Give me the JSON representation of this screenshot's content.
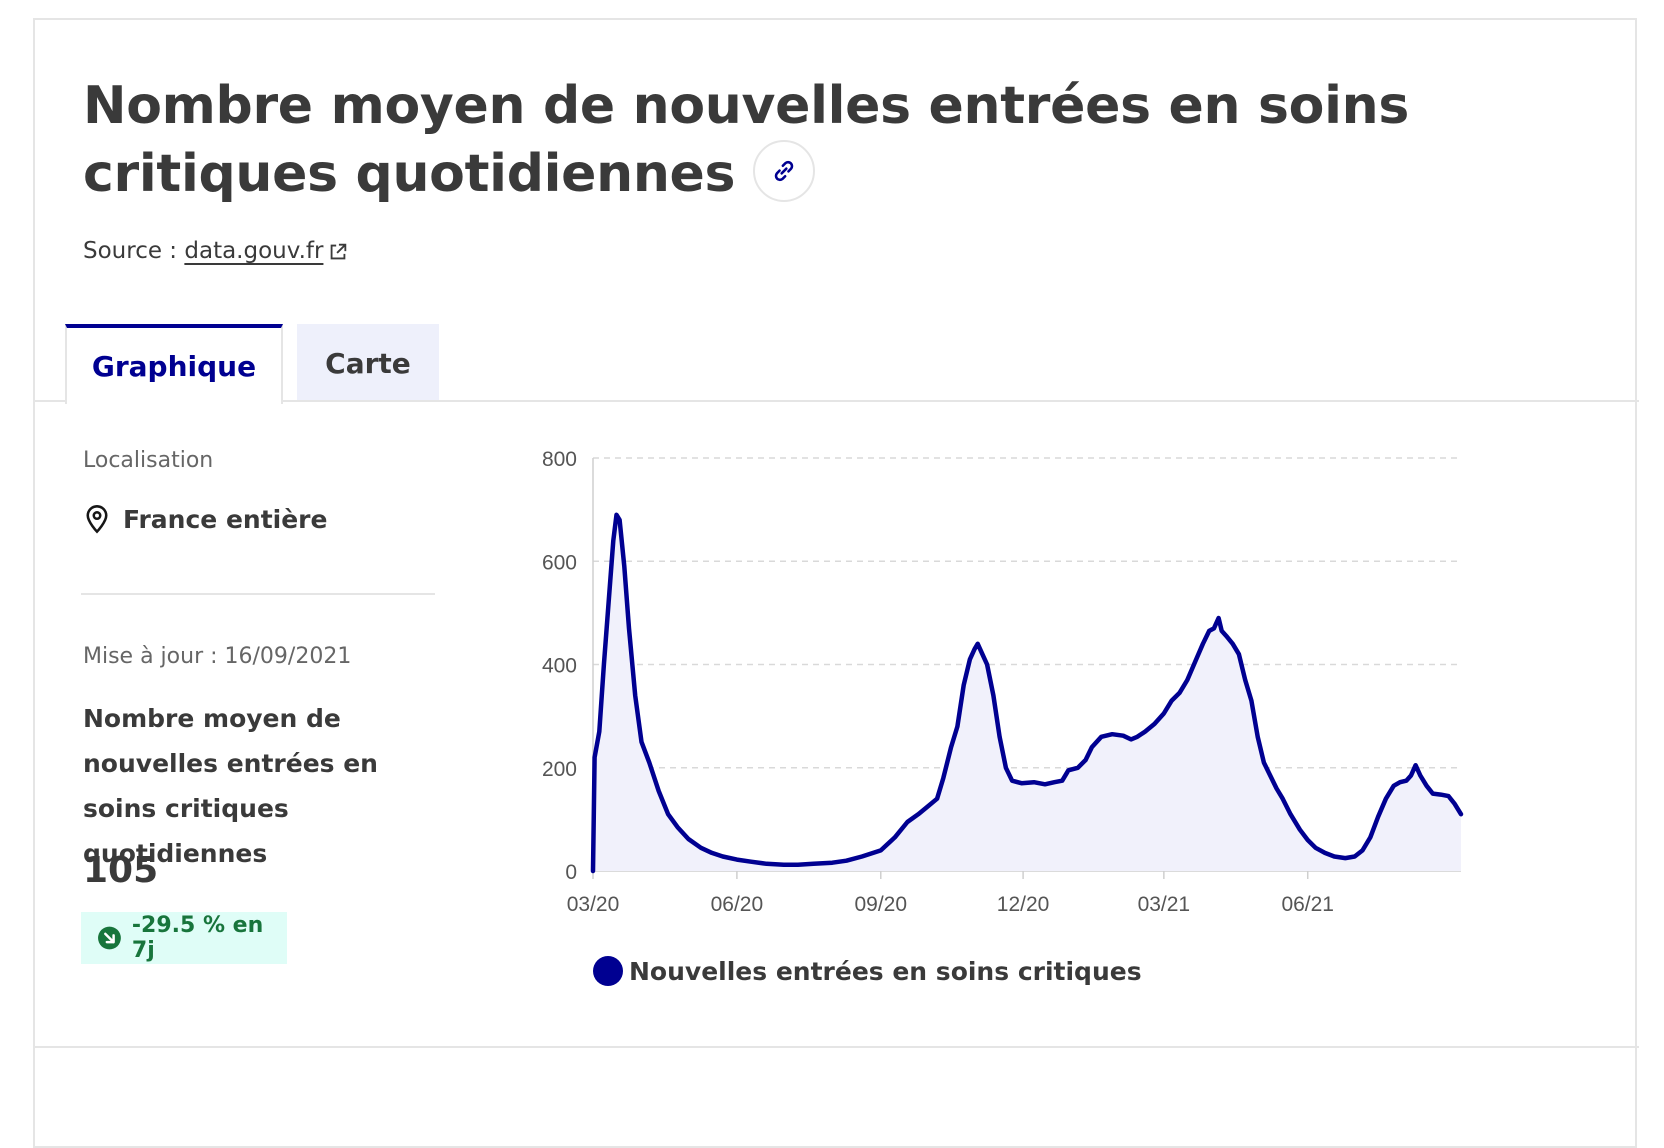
{
  "header": {
    "title": "Nombre moyen de nouvelles entrées en soins critiques quotidiennes",
    "source_prefix": "Source : ",
    "source_link": "data.gouv.fr",
    "link_icon": "link-icon",
    "external_icon": "external-link-icon"
  },
  "tabs": [
    {
      "label": "Graphique",
      "active": true
    },
    {
      "label": "Carte",
      "active": false
    }
  ],
  "sidebar": {
    "location_label": "Localisation",
    "location_value": "France entière",
    "location_icon": "map-pin-icon",
    "update_label": "Mise à jour : 16/09/2021",
    "kpi_title": "Nombre moyen de nouvelles entrées en soins critiques quotidiennes",
    "kpi_value": "105",
    "trend_text": "-29.5 % en 7j",
    "trend_icon": "arrow-down-right-icon",
    "trend_color": "#18753c",
    "trend_bg": "#dffdf7"
  },
  "colors": {
    "accent": "#000091",
    "fill": "#f1f1fb"
  },
  "chart_data": {
    "type": "area",
    "title": "",
    "xlabel": "",
    "ylabel": "",
    "ylim": [
      0,
      800
    ],
    "yticks": [
      "0",
      "200",
      "400",
      "600",
      "800"
    ],
    "xticks": [
      {
        "date": "2020-03-01",
        "label": "03/20"
      },
      {
        "date": "2020-06-01",
        "label": "06/20"
      },
      {
        "date": "2020-09-01",
        "label": "09/20"
      },
      {
        "date": "2020-12-01",
        "label": "12/20"
      },
      {
        "date": "2021-03-01",
        "label": "03/21"
      },
      {
        "date": "2021-06-01",
        "label": "06/21"
      }
    ],
    "grid": true,
    "legend_position": "bottom",
    "series": [
      {
        "name": "Nouvelles entrées en soins critiques",
        "color": "#000091",
        "points": [
          [
            "2020-03-01",
            0
          ],
          [
            "2020-03-02",
            220
          ],
          [
            "2020-03-05",
            270
          ],
          [
            "2020-03-08",
            400
          ],
          [
            "2020-03-11",
            520
          ],
          [
            "2020-03-14",
            640
          ],
          [
            "2020-03-16",
            690
          ],
          [
            "2020-03-18",
            680
          ],
          [
            "2020-03-21",
            590
          ],
          [
            "2020-03-24",
            470
          ],
          [
            "2020-03-28",
            340
          ],
          [
            "2020-04-01",
            250
          ],
          [
            "2020-04-06",
            210
          ],
          [
            "2020-04-12",
            155
          ],
          [
            "2020-04-18",
            110
          ],
          [
            "2020-04-24",
            85
          ],
          [
            "2020-05-01",
            62
          ],
          [
            "2020-05-09",
            45
          ],
          [
            "2020-05-16",
            35
          ],
          [
            "2020-05-23",
            28
          ],
          [
            "2020-06-01",
            22
          ],
          [
            "2020-06-10",
            18
          ],
          [
            "2020-06-20",
            14
          ],
          [
            "2020-07-01",
            12
          ],
          [
            "2020-07-10",
            12
          ],
          [
            "2020-07-20",
            14
          ],
          [
            "2020-08-01",
            16
          ],
          [
            "2020-08-10",
            20
          ],
          [
            "2020-08-20",
            28
          ],
          [
            "2020-09-01",
            40
          ],
          [
            "2020-09-10",
            65
          ],
          [
            "2020-09-18",
            95
          ],
          [
            "2020-09-25",
            110
          ],
          [
            "2020-10-01",
            125
          ],
          [
            "2020-10-07",
            140
          ],
          [
            "2020-10-11",
            180
          ],
          [
            "2020-10-16",
            240
          ],
          [
            "2020-10-20",
            280
          ],
          [
            "2020-10-24",
            360
          ],
          [
            "2020-10-28",
            410
          ],
          [
            "2020-10-31",
            430
          ],
          [
            "2020-11-02",
            440
          ],
          [
            "2020-11-05",
            420
          ],
          [
            "2020-11-08",
            400
          ],
          [
            "2020-11-12",
            340
          ],
          [
            "2020-11-16",
            260
          ],
          [
            "2020-11-20",
            200
          ],
          [
            "2020-11-24",
            175
          ],
          [
            "2020-11-30",
            170
          ],
          [
            "2020-12-08",
            172
          ],
          [
            "2020-12-15",
            168
          ],
          [
            "2020-12-21",
            172
          ],
          [
            "2020-12-26",
            175
          ],
          [
            "2020-12-30",
            195
          ],
          [
            "2021-01-05",
            200
          ],
          [
            "2021-01-10",
            215
          ],
          [
            "2021-01-14",
            240
          ],
          [
            "2021-01-20",
            260
          ],
          [
            "2021-01-27",
            265
          ],
          [
            "2021-02-03",
            262
          ],
          [
            "2021-02-08",
            255
          ],
          [
            "2021-02-12",
            260
          ],
          [
            "2021-02-17",
            270
          ],
          [
            "2021-02-23",
            285
          ],
          [
            "2021-03-01",
            305
          ],
          [
            "2021-03-06",
            330
          ],
          [
            "2021-03-11",
            345
          ],
          [
            "2021-03-16",
            370
          ],
          [
            "2021-03-21",
            405
          ],
          [
            "2021-03-26",
            440
          ],
          [
            "2021-03-30",
            465
          ],
          [
            "2021-04-02",
            470
          ],
          [
            "2021-04-05",
            490
          ],
          [
            "2021-04-07",
            465
          ],
          [
            "2021-04-10",
            455
          ],
          [
            "2021-04-14",
            440
          ],
          [
            "2021-04-18",
            420
          ],
          [
            "2021-04-22",
            370
          ],
          [
            "2021-04-26",
            330
          ],
          [
            "2021-04-30",
            260
          ],
          [
            "2021-05-04",
            210
          ],
          [
            "2021-05-08",
            185
          ],
          [
            "2021-05-12",
            160
          ],
          [
            "2021-05-16",
            140
          ],
          [
            "2021-05-21",
            110
          ],
          [
            "2021-05-27",
            80
          ],
          [
            "2021-06-01",
            60
          ],
          [
            "2021-06-06",
            45
          ],
          [
            "2021-06-12",
            35
          ],
          [
            "2021-06-18",
            28
          ],
          [
            "2021-06-25",
            25
          ],
          [
            "2021-07-01",
            28
          ],
          [
            "2021-07-06",
            40
          ],
          [
            "2021-07-11",
            65
          ],
          [
            "2021-07-16",
            105
          ],
          [
            "2021-07-21",
            140
          ],
          [
            "2021-07-26",
            165
          ],
          [
            "2021-07-30",
            172
          ],
          [
            "2021-08-03",
            175
          ],
          [
            "2021-08-06",
            185
          ],
          [
            "2021-08-09",
            205
          ],
          [
            "2021-08-12",
            185
          ],
          [
            "2021-08-16",
            165
          ],
          [
            "2021-08-20",
            150
          ],
          [
            "2021-08-25",
            148
          ],
          [
            "2021-08-30",
            145
          ],
          [
            "2021-09-03",
            130
          ],
          [
            "2021-09-07",
            110
          ]
        ]
      }
    ]
  }
}
